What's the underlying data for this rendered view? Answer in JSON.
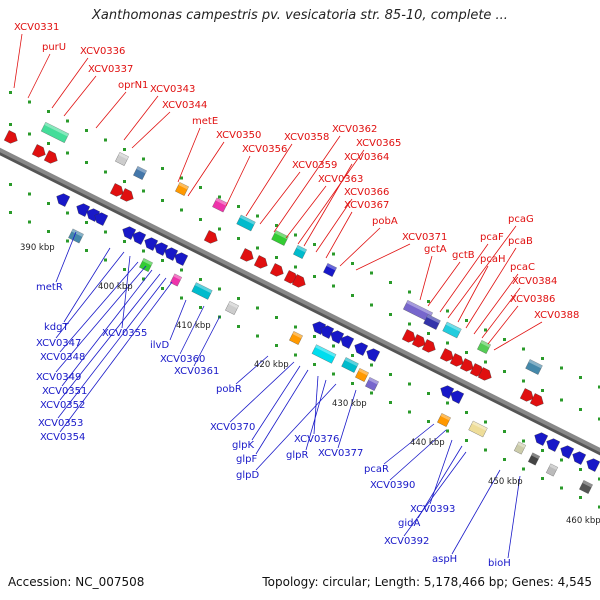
{
  "title": "Xanthomonas campestris pv. vesicatoria str. 85-10, complete ...",
  "footer": {
    "accession": "Accession: NC_007508",
    "summary": "Topology: circular; Length: 5,178,466 bp; Genes: 4,545"
  },
  "colors": {
    "forward": "#e01010",
    "reverse": "#1818c8",
    "backbone": "#888888",
    "tick_dots": "#2a9a2a"
  },
  "ticks": [
    "390 kbp",
    "400 kbp",
    "410 kbp",
    "420 kbp",
    "430 kbp",
    "440 kbp",
    "450 kbp",
    "460 kbp"
  ],
  "forward_genes": [
    "XCV0331",
    "purU",
    "XCV0336",
    "XCV0337",
    "oprN1",
    "XCV0343",
    "XCV0344",
    "metE",
    "XCV0350",
    "XCV0356",
    "XCV0358",
    "XCV0359",
    "XCV0362",
    "XCV0363",
    "XCV0365",
    "XCV0364",
    "XCV0366",
    "XCV0367",
    "pobA",
    "XCV0371",
    "gctA",
    "gctB",
    "pcaF",
    "pcaG",
    "pcaH",
    "pcaB",
    "pcaC",
    "XCV0384",
    "XCV0386",
    "XCV0388"
  ],
  "reverse_genes": [
    "metR",
    "kdgT",
    "XCV0347",
    "XCV0355",
    "XCV0348",
    "XCV0349",
    "XCV0351",
    "XCV0352",
    "XCV0353",
    "XCV0354",
    "ilvD",
    "XCV0360",
    "XCV0361",
    "pobR",
    "XCV0370",
    "glpK",
    "glpF",
    "XCV0376",
    "glpR",
    "glpD",
    "XCV0377",
    "pcaR",
    "XCV0390",
    "XCV0393",
    "gidA",
    "XCV0392",
    "aspH",
    "bioH"
  ]
}
